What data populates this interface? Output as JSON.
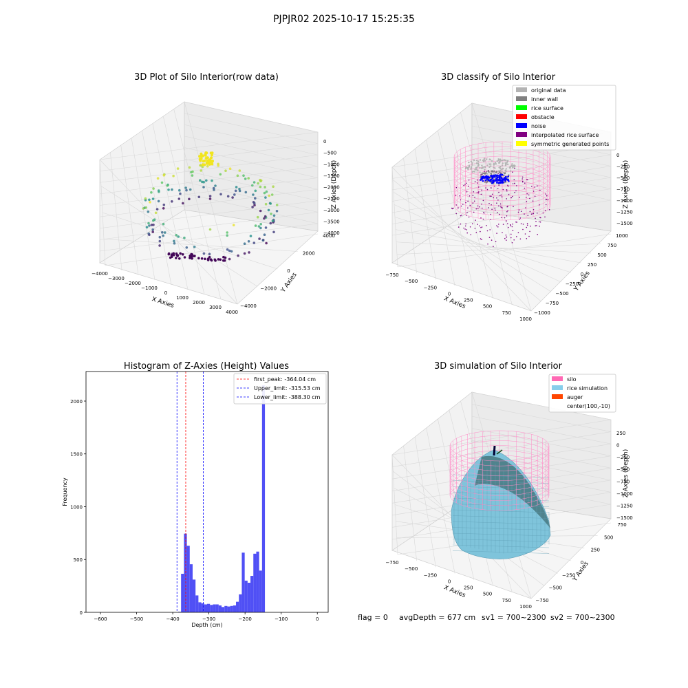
{
  "figure": {
    "suptitle": "PJPJR02 2025-10-17 15:25:35",
    "footer": {
      "flag": "flag = 0",
      "avg_depth": "avgDepth = 677 cm",
      "sv1": "sv1 = 700~2300",
      "sv2": "sv2 = 700~2300"
    }
  },
  "chart_data": [
    {
      "type": "scatter",
      "projection": "3d",
      "title": "3D Plot of Silo Interior(row data)",
      "xlabel": "X Axies",
      "ylabel": "Y Axies",
      "zlabel": "Z Axies (Depth)",
      "x_ticks": [
        "−4000",
        "−3000",
        "−2000",
        "−1000",
        "0",
        "1000",
        "2000",
        "3000",
        "4000"
      ],
      "y_ticks": [
        "−4000",
        "−2000",
        "0",
        "2000",
        "4000"
      ],
      "z_ticks": [
        "0",
        "−500",
        "−1000",
        "−1500",
        "−2000",
        "−2500",
        "−3000",
        "−3500",
        "−4000"
      ],
      "xlim": [
        -4000,
        4000
      ],
      "ylim": [
        -4000,
        4000
      ],
      "zlim": [
        -4000,
        0
      ],
      "colormap": "viridis"
    },
    {
      "type": "scatter",
      "projection": "3d",
      "title": "3D classify of Silo Interior",
      "xlabel": "X Axies",
      "ylabel": "Y Axies",
      "zlabel": "Z Axies (Depth)",
      "x_ticks": [
        "−750",
        "−500",
        "−250",
        "0",
        "250",
        "500",
        "750",
        "1000"
      ],
      "y_ticks": [
        "−1000",
        "−750",
        "−500",
        "−250",
        "0",
        "250",
        "500",
        "750",
        "1000"
      ],
      "z_ticks": [
        "0",
        "−250",
        "−500",
        "−750",
        "−1000",
        "−1250",
        "−1500"
      ],
      "legend_position": "upper-right",
      "legend": [
        {
          "label": "original data",
          "color": "#b3b3b3"
        },
        {
          "label": "inner wall",
          "color": "#808080"
        },
        {
          "label": "rice surface",
          "color": "#00ff00"
        },
        {
          "label": "obstacle",
          "color": "#ff0000"
        },
        {
          "label": "noise",
          "color": "#0000ff"
        },
        {
          "label": "interpolated rice surface",
          "color": "#800080"
        },
        {
          "label": "symmetric generated points",
          "color": "#ffff00"
        }
      ]
    },
    {
      "type": "bar",
      "title": "Histogram of Z-Axies (Height) Values",
      "xlabel": "Depth (cm)",
      "ylabel": "Frequency",
      "xlim": [
        -640,
        30
      ],
      "ylim": [
        0,
        2280
      ],
      "x_ticks": [
        -600,
        -500,
        -400,
        -300,
        -200,
        -100,
        0
      ],
      "x_tick_labels": [
        "−600",
        "−500",
        "−400",
        "−300",
        "−200",
        "−100",
        "0"
      ],
      "y_ticks": [
        0,
        500,
        1000,
        1500,
        2000
      ],
      "bar_color": "#5050f5",
      "bin_start": -385,
      "bin_width": 8,
      "counts": [
        5,
        365,
        745,
        630,
        455,
        310,
        160,
        95,
        85,
        75,
        80,
        70,
        75,
        75,
        65,
        50,
        60,
        55,
        60,
        65,
        100,
        170,
        565,
        300,
        280,
        345,
        555,
        575,
        395,
        2150
      ],
      "vlines": [
        {
          "label": "first_peak: -364.04 cm",
          "x": -364.04,
          "color": "#ff0000"
        },
        {
          "label": "Upper_limit: -315.53 cm",
          "x": -315.53,
          "color": "#0000ff"
        },
        {
          "label": "Lower_limit: -388.30 cm",
          "x": -388.3,
          "color": "#0000ff"
        }
      ],
      "legend_position": "upper-right"
    },
    {
      "type": "area",
      "projection": "3d",
      "title": "3D simulation of Silo Interior",
      "xlabel": "X Axies",
      "ylabel": "Y Axies",
      "zlabel": "Z Axies (Depth)",
      "x_ticks": [
        "−750",
        "−500",
        "−250",
        "0",
        "250",
        "500",
        "750",
        "1000"
      ],
      "y_ticks": [
        "−750",
        "−500",
        "−250",
        "0",
        "250",
        "500",
        "750"
      ],
      "z_ticks": [
        "250",
        "0",
        "−250",
        "−500",
        "−750",
        "−1000",
        "−1250",
        "−1500"
      ],
      "legend_position": "upper-right",
      "legend": [
        {
          "label": "silo",
          "color": "#ff69b4"
        },
        {
          "label": "rice simulation",
          "color": "#87ceeb"
        },
        {
          "label": "auger",
          "color": "#ff4500"
        },
        {
          "label": "center(100,-10)",
          "color": ""
        }
      ]
    }
  ]
}
